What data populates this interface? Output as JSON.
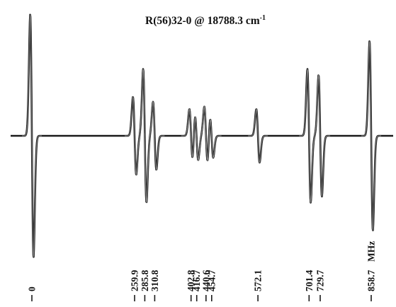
{
  "chart_data": {
    "type": "line",
    "title_main": "R(56)32-0 @ 18788.3 cm",
    "title_sup": "-1",
    "unit": "MHz",
    "x_range": [
      -35,
      880
    ],
    "series": [
      {
        "values": [
          {
            "position": 0,
            "amp": 1.0
          },
          {
            "position": 259.9,
            "amp": 0.32
          },
          {
            "position": 285.8,
            "amp": 0.55
          },
          {
            "position": 310.8,
            "amp": 0.28
          },
          {
            "position": 402.8,
            "amp": 0.22
          },
          {
            "position": 416.7,
            "amp": 0.2
          },
          {
            "position": 440.6,
            "amp": 0.24
          },
          {
            "position": 454.7,
            "amp": 0.18
          },
          {
            "position": 572.1,
            "amp": 0.22
          },
          {
            "position": 701.4,
            "amp": 0.55
          },
          {
            "position": 729.7,
            "amp": 0.5
          },
          {
            "position": 858.7,
            "amp": 0.78
          }
        ]
      }
    ],
    "peak_labels": [
      "0",
      "259.9",
      "285.8",
      "310.8",
      "402.8",
      "416.7",
      "440.6",
      "454.7",
      "572.1",
      "701.4",
      "729.7",
      "858.7"
    ]
  },
  "colors": {
    "trace": "#1a1a1a",
    "trace_highlight": "#8a8a8a",
    "text": "#111111"
  }
}
